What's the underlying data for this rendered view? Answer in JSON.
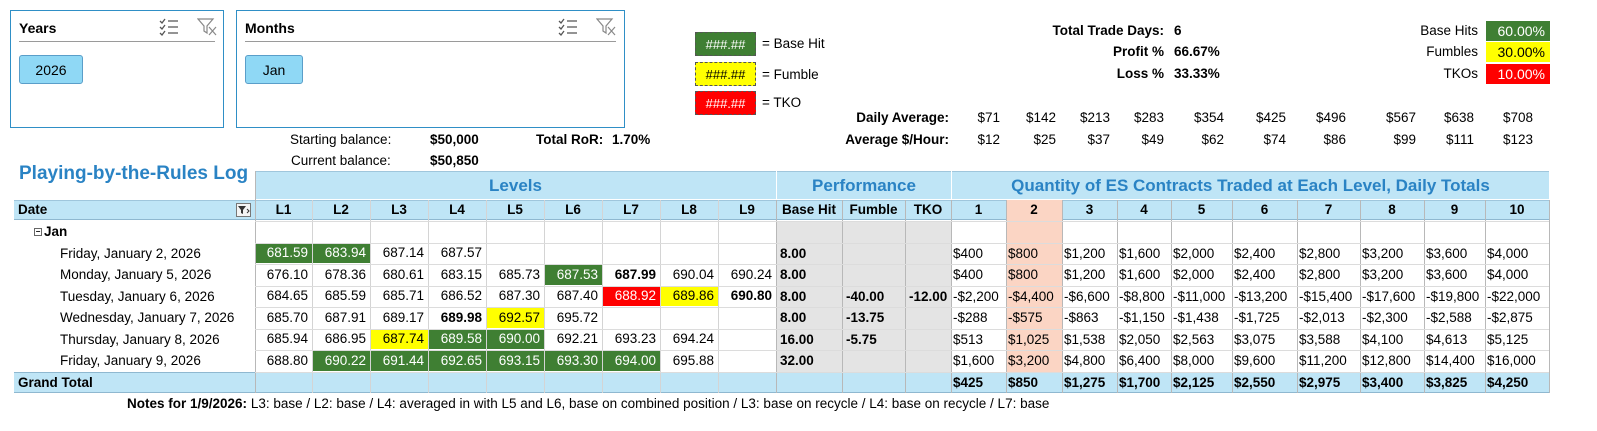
{
  "slicers": {
    "years": {
      "title": "Years",
      "selected": "2026"
    },
    "months": {
      "title": "Months",
      "selected": "Jan"
    }
  },
  "balances": {
    "starting_label": "Starting balance:",
    "starting_value": "$50,000",
    "current_label": "Current balance:",
    "current_value": "$50,850",
    "ror_label": "Total RoR:",
    "ror_value": "1.70%"
  },
  "legend": {
    "sample": "###.##",
    "base_label": "= Base Hit",
    "fumble_label": "= Fumble",
    "tko_label": "= TKO"
  },
  "stats": {
    "trade_days_label": "Total Trade Days:",
    "trade_days_value": "6",
    "profit_label": "Profit %",
    "profit_value": "66.67%",
    "loss_label": "Loss %",
    "loss_value": "33.33%",
    "base_hits_label": "Base Hits",
    "base_hits_value": "60.00%",
    "fumbles_label": "Fumbles",
    "fumbles_value": "30.00%",
    "tkos_label": "TKOs",
    "tkos_value": "10.00%"
  },
  "daily_average": {
    "label": "Daily Average:",
    "values": [
      "$71",
      "$142",
      "$213",
      "$283",
      "$354",
      "$425",
      "$496",
      "$567",
      "$638",
      "$708"
    ]
  },
  "average_hour": {
    "label": "Average $/Hour:",
    "values": [
      "$12",
      "$25",
      "$37",
      "$49",
      "$62",
      "$74",
      "$86",
      "$99",
      "$111",
      "$123"
    ]
  },
  "log_title": "Playing-by-the-Rules Log",
  "groups": {
    "levels": "Levels",
    "performance": "Performance",
    "quantity": "Quantity of ES Contracts Traded at Each Level, Daily Totals"
  },
  "columns": {
    "date": "Date",
    "levels": [
      "L1",
      "L2",
      "L3",
      "L4",
      "L5",
      "L6",
      "L7",
      "L8",
      "L9"
    ],
    "perf": [
      "Base Hit",
      "Fumble",
      "TKO"
    ],
    "qty": [
      "1",
      "2",
      "3",
      "4",
      "5",
      "6",
      "7",
      "8",
      "9",
      "10"
    ]
  },
  "month_label": "Jan",
  "rows": [
    {
      "date": "Friday, January 2, 2026",
      "levels": [
        "681.59",
        "683.94",
        "687.14",
        "687.57",
        "",
        "",
        "",
        "",
        ""
      ],
      "styles": [
        "g",
        "g",
        "",
        "",
        "",
        "",
        "",
        "",
        ""
      ],
      "perf": [
        "8.00",
        "",
        ""
      ],
      "qty": [
        "$400",
        "$800",
        "$1,200",
        "$1,600",
        "$2,000",
        "$2,400",
        "$2,800",
        "$3,200",
        "$3,600",
        "$4,000"
      ]
    },
    {
      "date": "Monday, January 5, 2026",
      "levels": [
        "676.10",
        "678.36",
        "680.61",
        "683.15",
        "685.73",
        "687.53",
        "687.99",
        "690.04",
        "690.24"
      ],
      "styles": [
        "",
        "",
        "",
        "",
        "",
        "g",
        "b",
        "",
        ""
      ],
      "perf": [
        "8.00",
        "",
        ""
      ],
      "qty": [
        "$400",
        "$800",
        "$1,200",
        "$1,600",
        "$2,000",
        "$2,400",
        "$2,800",
        "$3,200",
        "$3,600",
        "$4,000"
      ]
    },
    {
      "date": "Tuesday, January 6, 2026",
      "levels": [
        "684.65",
        "685.59",
        "685.71",
        "686.52",
        "687.30",
        "687.40",
        "688.92",
        "689.86",
        "690.80"
      ],
      "styles": [
        "",
        "",
        "",
        "",
        "",
        "",
        "r",
        "y",
        "b"
      ],
      "perf": [
        "8.00",
        "-40.00",
        "-12.00"
      ],
      "qty": [
        "-$2,200",
        "-$4,400",
        "-$6,600",
        "-$8,800",
        "-$11,000",
        "-$13,200",
        "-$15,400",
        "-$17,600",
        "-$19,800",
        "-$22,000"
      ]
    },
    {
      "date": "Wednesday, January 7, 2026",
      "levels": [
        "685.70",
        "687.91",
        "689.17",
        "689.98",
        "692.57",
        "695.72",
        "",
        "",
        ""
      ],
      "styles": [
        "",
        "",
        "",
        "b",
        "y",
        "",
        "",
        "",
        ""
      ],
      "perf": [
        "8.00",
        "-13.75",
        ""
      ],
      "qty": [
        "-$288",
        "-$575",
        "-$863",
        "-$1,150",
        "-$1,438",
        "-$1,725",
        "-$2,013",
        "-$2,300",
        "-$2,588",
        "-$2,875"
      ]
    },
    {
      "date": "Thursday, January 8, 2026",
      "levels": [
        "685.94",
        "686.95",
        "687.74",
        "689.58",
        "690.00",
        "692.21",
        "693.23",
        "694.24",
        ""
      ],
      "styles": [
        "",
        "",
        "y",
        "g",
        "g",
        "",
        "",
        "",
        ""
      ],
      "perf": [
        "16.00",
        "-5.75",
        ""
      ],
      "qty": [
        "$513",
        "$1,025",
        "$1,538",
        "$2,050",
        "$2,563",
        "$3,075",
        "$3,588",
        "$4,100",
        "$4,613",
        "$5,125"
      ]
    },
    {
      "date": "Friday, January 9, 2026",
      "levels": [
        "688.80",
        "690.22",
        "691.44",
        "692.65",
        "693.15",
        "693.30",
        "694.00",
        "695.88",
        ""
      ],
      "styles": [
        "",
        "g",
        "g",
        "g",
        "g",
        "g",
        "g",
        "",
        ""
      ],
      "perf": [
        "32.00",
        "",
        ""
      ],
      "qty": [
        "$1,600",
        "$3,200",
        "$4,800",
        "$6,400",
        "$8,000",
        "$9,600",
        "$11,200",
        "$12,800",
        "$14,400",
        "$16,000"
      ]
    }
  ],
  "grand_total": {
    "label": "Grand Total",
    "qty": [
      "$425",
      "$850",
      "$1,275",
      "$1,700",
      "$2,125",
      "$2,550",
      "$2,975",
      "$3,400",
      "$3,825",
      "$4,250"
    ]
  },
  "notes": {
    "label": "Notes for 1/9/2026:",
    "text": "L3: base / L2: base / L4: averaged in with L5 and L6, base on combined position / L3: base on recycle / L4: base on recycle / L7: base"
  },
  "colors": {
    "base_green": "#3f7f33",
    "fumble_yellow": "#ffff00",
    "tko_red": "#ff0000",
    "header_blue": "#bfe5f6",
    "title_blue": "#2a83c4",
    "highlight_col": "#fbd5c4",
    "perf_gray": "#e4e4e4"
  }
}
